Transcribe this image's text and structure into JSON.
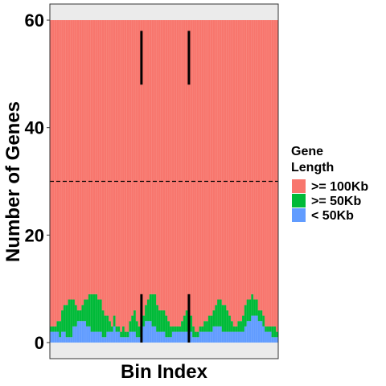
{
  "chart_data": {
    "type": "bar",
    "stacked": true,
    "xlabel": "Bin Index",
    "ylabel": "Number of Genes",
    "ylim": [
      -3,
      63
    ],
    "yticks": [
      "0",
      "20",
      "40",
      "60"
    ],
    "legend": {
      "title_lines": [
        "Gene",
        "Length"
      ],
      "position": "right",
      "entries": [
        {
          "label": ">= 100Kb",
          "color": "#f8766d"
        },
        {
          "label": ">= 50Kb",
          "color": "#00ba38"
        },
        {
          "label": "< 50Kb",
          "color": "#619cff"
        }
      ]
    },
    "total_per_bin": 60,
    "series": [
      {
        "name": "< 50Kb",
        "color": "#619cff",
        "values": [
          2,
          2,
          2,
          2,
          1,
          2,
          2,
          1,
          1,
          1,
          3,
          3,
          4,
          4,
          4,
          4,
          3,
          3,
          2,
          2,
          2,
          2,
          2,
          1,
          1,
          2,
          2,
          2,
          3,
          2,
          2,
          1,
          1,
          1,
          1,
          2,
          2,
          2,
          1,
          1,
          2,
          3,
          4,
          4,
          4,
          3,
          3,
          2,
          2,
          2,
          2,
          1,
          1,
          1,
          2,
          2,
          2,
          2,
          2,
          2,
          2,
          2,
          2,
          1,
          1,
          1,
          2,
          2,
          2,
          2,
          2,
          2,
          3,
          3,
          3,
          3,
          2,
          2,
          2,
          2,
          2,
          2,
          2,
          2,
          2,
          2,
          3,
          4,
          4,
          5,
          5,
          5,
          4,
          4,
          3,
          2,
          2,
          2,
          1,
          1,
          1
        ]
      },
      {
        "name": ">= 50Kb",
        "color": "#00ba38",
        "values": [
          1,
          1,
          1,
          2,
          3,
          4,
          5,
          6,
          7,
          7,
          5,
          4,
          2,
          2,
          3,
          4,
          5,
          6,
          7,
          7,
          7,
          6,
          6,
          5,
          4,
          3,
          2,
          1,
          2,
          1,
          1,
          1,
          2,
          1,
          1,
          2,
          3,
          4,
          3,
          2,
          2,
          2,
          3,
          4,
          5,
          6,
          6,
          5,
          4,
          4,
          4,
          4,
          3,
          2,
          1,
          1,
          1,
          1,
          2,
          3,
          4,
          3,
          3,
          2,
          1,
          1,
          1,
          1,
          2,
          2,
          3,
          3,
          3,
          4,
          5,
          5,
          5,
          5,
          4,
          3,
          2,
          1,
          1,
          2,
          2,
          3,
          4,
          4,
          4,
          4,
          3,
          3,
          2,
          2,
          2,
          1,
          1,
          1,
          2,
          2,
          1
        ]
      },
      {
        "name": ">= 100Kb",
        "color": "#f8766d",
        "fill_to_total": true
      }
    ],
    "hline": {
      "y": 30,
      "style": "dashed"
    },
    "vsegments": [
      {
        "bin": 40,
        "y0": 48,
        "y1": 58
      },
      {
        "bin": 61,
        "y0": 48,
        "y1": 58
      },
      {
        "bin": 40,
        "y0": 0,
        "y1": 9
      },
      {
        "bin": 61,
        "y0": 0,
        "y1": 9
      }
    ]
  }
}
